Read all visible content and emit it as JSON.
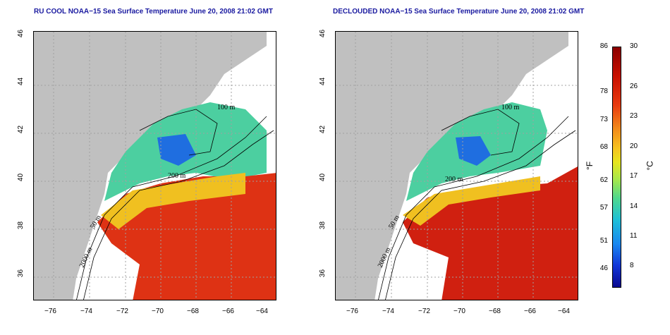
{
  "titles": {
    "left": "RU COOL NOAA−15 Sea Surface Temperature June 20, 2008 21:02 GMT",
    "right": "DECLOUDED NOAA−15 Sea Surface Temperature June 20, 2008 21:02 GMT"
  },
  "axes": {
    "lat_ticks": [
      "46",
      "44",
      "42",
      "40",
      "38",
      "36"
    ],
    "lon_ticks": [
      "−76",
      "−74",
      "−72",
      "−70",
      "−68",
      "−66",
      "−64"
    ]
  },
  "contour_labels": {
    "m100": "100 m",
    "m200": "200 m",
    "m50": "50 m",
    "m2000": "2000 m"
  },
  "colorbar": {
    "fahrenheit_unit": "°F",
    "celsius_unit": "°C",
    "fahrenheit_ticks": [
      "86",
      "78",
      "73",
      "68",
      "62",
      "57",
      "51",
      "46"
    ],
    "celsius_ticks": [
      "30",
      "26",
      "23",
      "20",
      "17",
      "14",
      "11",
      "8"
    ]
  },
  "colors": {
    "land": "#c0c0c0",
    "warm": "#d92a10",
    "cool": "#3db8d8"
  }
}
